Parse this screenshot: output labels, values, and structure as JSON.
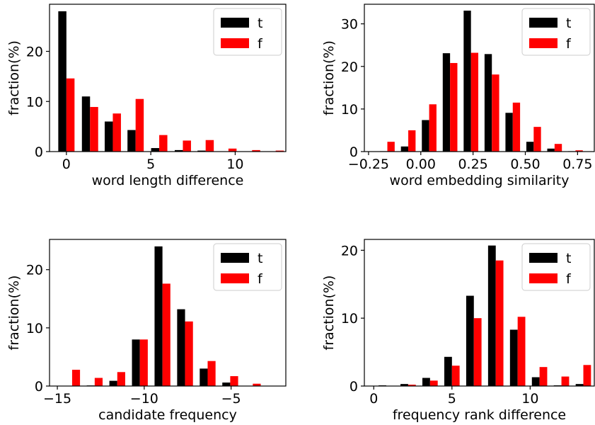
{
  "chart_data": [
    {
      "type": "bar",
      "xlabel": "word length difference",
      "ylabel": "fraction(%)",
      "xlim": [
        -1.0,
        13.0
      ],
      "ylim": [
        0,
        29.4
      ],
      "xticks": [
        0,
        5,
        10
      ],
      "yticks": [
        0,
        10,
        20
      ],
      "legend": {
        "placement": "top-right",
        "entries": [
          "t",
          "f"
        ]
      },
      "bin_width": 1.375,
      "x": [
        0.0,
        1.4,
        2.75,
        4.1,
        5.5,
        6.9,
        8.25,
        9.6,
        11.0,
        12.4
      ],
      "series": [
        {
          "name": "t",
          "color": "#000000",
          "values": [
            28.0,
            11.0,
            6.0,
            4.3,
            0.7,
            0.3,
            0.2,
            0.05,
            0.05,
            0.05
          ]
        },
        {
          "name": "f",
          "color": "#ff0000",
          "values": [
            14.6,
            8.9,
            7.6,
            10.5,
            3.3,
            2.2,
            2.3,
            0.6,
            0.3,
            0.2
          ]
        }
      ]
    },
    {
      "type": "bar",
      "xlabel": "word embedding similarity",
      "ylabel": "fraction(%)",
      "xlim": [
        -0.27,
        0.83
      ],
      "ylim": [
        0,
        34.6
      ],
      "xticks": [
        -0.25,
        0.0,
        0.25,
        0.5,
        0.75
      ],
      "xtick_labels": [
        "−0.25",
        "0.00",
        "0.25",
        "0.50",
        "0.75"
      ],
      "yticks": [
        0,
        10,
        20,
        30
      ],
      "legend": {
        "placement": "top-right",
        "entries": [
          "t",
          "f"
        ]
      },
      "bin_width": 0.1,
      "x": [
        -0.16,
        -0.06,
        0.04,
        0.14,
        0.24,
        0.34,
        0.44,
        0.54,
        0.64,
        0.74
      ],
      "series": [
        {
          "name": "t",
          "color": "#000000",
          "values": [
            0.1,
            1.2,
            7.4,
            23.1,
            33.1,
            22.9,
            9.1,
            2.3,
            0.7,
            0.1
          ]
        },
        {
          "name": "f",
          "color": "#ff0000",
          "values": [
            2.3,
            5.0,
            11.1,
            20.8,
            23.2,
            18.1,
            11.5,
            5.8,
            1.8,
            0.3
          ]
        }
      ]
    },
    {
      "type": "bar",
      "xlabel": "candidate frequency",
      "ylabel": "fraction(%)",
      "xlim": [
        -15.45,
        -1.85
      ],
      "ylim": [
        0,
        25.2
      ],
      "xticks": [
        -15,
        -10,
        -5
      ],
      "xtick_labels": [
        "−15",
        "−10",
        "−5"
      ],
      "yticks": [
        0,
        10,
        20
      ],
      "legend": {
        "placement": "top-right",
        "entries": [
          "t",
          "f"
        ]
      },
      "bin_width": 1.3,
      "x": [
        -14.15,
        -12.85,
        -11.55,
        -10.25,
        -8.95,
        -7.65,
        -6.35,
        -5.05,
        -3.75,
        -2.45
      ],
      "series": [
        {
          "name": "t",
          "color": "#000000",
          "values": [
            0.05,
            0.1,
            0.9,
            8.0,
            24.0,
            13.2,
            3.0,
            0.6,
            0.05,
            0.05
          ]
        },
        {
          "name": "f",
          "color": "#ff0000",
          "values": [
            2.8,
            1.4,
            2.4,
            8.0,
            17.6,
            11.1,
            4.3,
            1.7,
            0.4,
            0.05
          ]
        }
      ]
    },
    {
      "type": "bar",
      "xlabel": "frequency rank difference",
      "ylabel": "fraction(%)",
      "xlim": [
        -0.6,
        14.1
      ],
      "ylim": [
        0,
        21.6
      ],
      "xticks": [
        0,
        5,
        10
      ],
      "yticks": [
        0,
        10,
        20
      ],
      "legend": {
        "placement": "top-right",
        "entries": [
          "t",
          "f"
        ]
      },
      "bin_width": 1.4,
      "x": [
        0.8,
        2.2,
        3.6,
        5.0,
        6.4,
        7.8,
        9.2,
        10.6,
        12.0,
        13.4
      ],
      "series": [
        {
          "name": "t",
          "color": "#000000",
          "values": [
            0.1,
            0.3,
            1.2,
            4.3,
            13.3,
            20.7,
            8.3,
            1.3,
            0.1,
            0.3
          ]
        },
        {
          "name": "f",
          "color": "#ff0000",
          "values": [
            0.05,
            0.2,
            0.8,
            3.0,
            10.0,
            18.5,
            10.2,
            2.8,
            1.4,
            3.1
          ]
        }
      ]
    }
  ]
}
